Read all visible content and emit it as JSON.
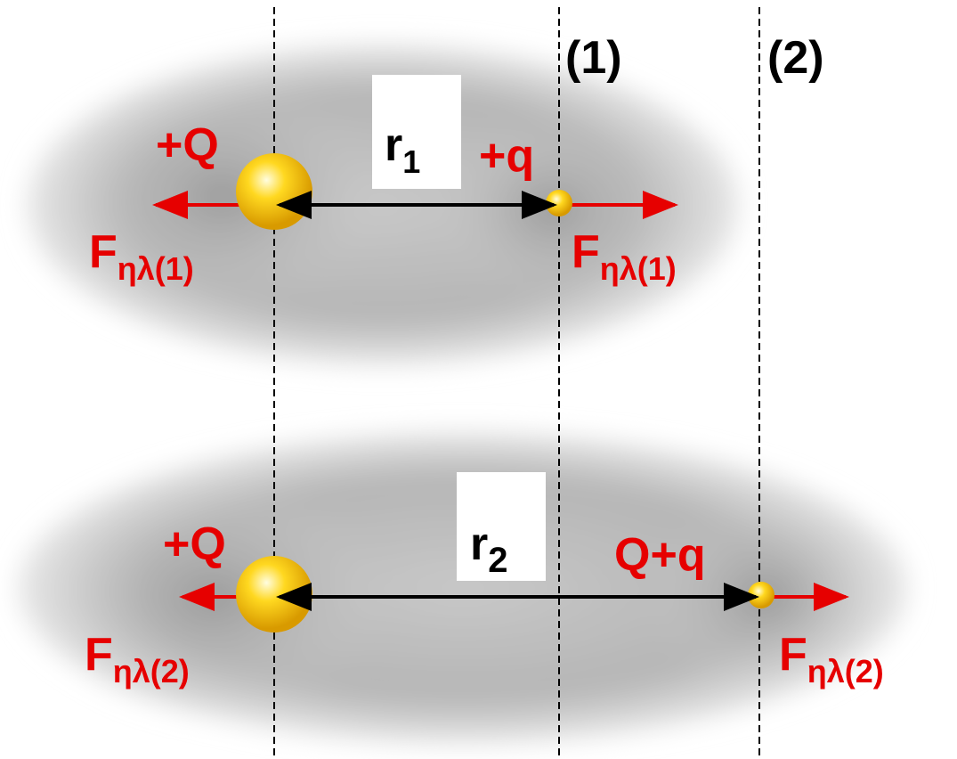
{
  "guides": [
    {
      "label": "(1)"
    },
    {
      "label": "(2)"
    }
  ],
  "scenes": [
    {
      "source_charge": "+Q",
      "test_charge": "+q",
      "distance": {
        "symbol": "r",
        "subscript": "1"
      },
      "force_left": {
        "symbol": "F",
        "subscript": "ηλ(1)"
      },
      "force_right": {
        "symbol": "F",
        "subscript": "ηλ(1)"
      }
    },
    {
      "source_charge": "+Q",
      "test_charge": "Q+q",
      "distance": {
        "symbol": "r",
        "subscript": "2"
      },
      "force_left": {
        "symbol": "F",
        "subscript": "ηλ(2)"
      },
      "force_right": {
        "symbol": "F",
        "subscript": "ηλ(2)"
      }
    }
  ]
}
